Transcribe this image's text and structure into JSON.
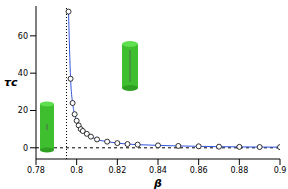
{
  "chart_data": {
    "type": "line",
    "x_label": "β",
    "y_label": "τc",
    "x": [
      0.796,
      0.797,
      0.798,
      0.799,
      0.8,
      0.801,
      0.802,
      0.803,
      0.805,
      0.807,
      0.81,
      0.815,
      0.82,
      0.825,
      0.83,
      0.84,
      0.85,
      0.86,
      0.87,
      0.88,
      0.89,
      0.9
    ],
    "values": [
      73,
      37,
      24,
      18,
      14.5,
      12,
      10,
      9,
      7.5,
      6,
      4.5,
      3.3,
      2.5,
      2,
      1.7,
      1.3,
      1,
      0.8,
      0.6,
      0.5,
      0.4,
      0.35
    ],
    "color": "#3355dd",
    "marker": "open_circle",
    "xlim": [
      0.78,
      0.9
    ],
    "xticks": [
      0.78,
      0.8,
      0.82,
      0.84,
      0.86,
      0.88,
      0.9
    ],
    "ylim": [
      -6,
      76
    ],
    "yticks": [
      0,
      20,
      40,
      60
    ],
    "vline": 0.795,
    "hline": 0
  }
}
